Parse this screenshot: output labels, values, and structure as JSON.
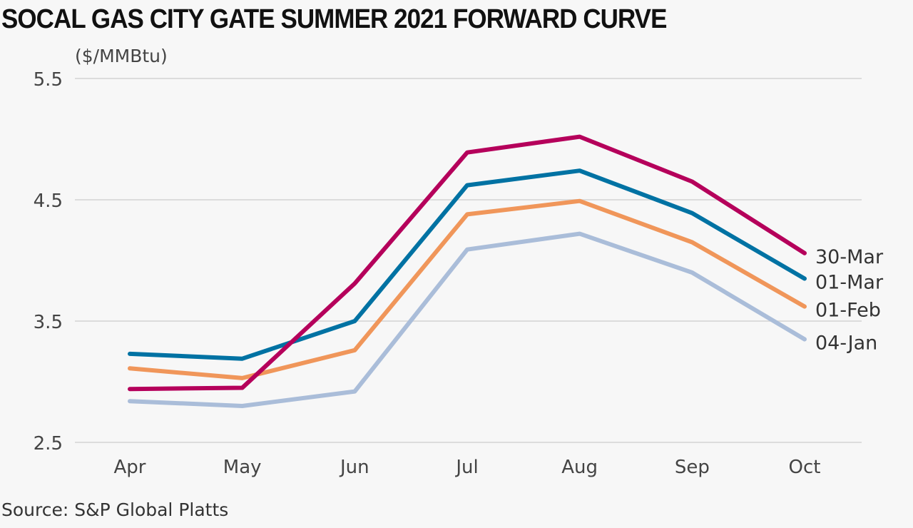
{
  "chart_data": {
    "type": "line",
    "title": "SOCAL GAS CITY GATE SUMMER 2021 FORWARD CURVE",
    "ylabel": "($/MMBtu)",
    "xlabel": "",
    "source": "Source: S&P Global Platts",
    "categories": [
      "Apr",
      "May",
      "Jun",
      "Jul",
      "Aug",
      "Sep",
      "Oct"
    ],
    "ylim": [
      2.5,
      5.5
    ],
    "yticks": [
      "2.5",
      "3.5",
      "4.5",
      "5.5"
    ],
    "grid": true,
    "legend": "end-of-line labels, right",
    "series": [
      {
        "name": "30-Mar",
        "color": "#b5005b",
        "values": [
          2.94,
          2.95,
          3.81,
          4.89,
          5.02,
          4.65,
          4.06
        ]
      },
      {
        "name": "01-Mar",
        "color": "#0072a3",
        "values": [
          3.23,
          3.19,
          3.5,
          4.62,
          4.74,
          4.39,
          3.85
        ]
      },
      {
        "name": "01-Feb",
        "color": "#f0965a",
        "values": [
          3.11,
          3.03,
          3.26,
          4.38,
          4.49,
          4.15,
          3.62
        ]
      },
      {
        "name": "04-Jan",
        "color": "#aabdd9",
        "values": [
          2.84,
          2.8,
          2.92,
          4.09,
          4.22,
          3.9,
          3.35
        ]
      }
    ]
  }
}
